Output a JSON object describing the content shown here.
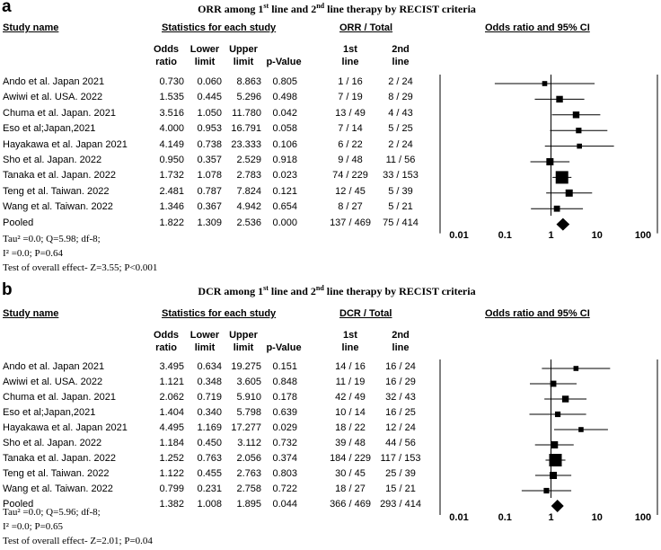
{
  "panels": [
    {
      "letter": "a",
      "title": "ORR among 1st line and 2nd line therapy by RECIST criteria",
      "title_parts": [
        "ORR among 1",
        "st",
        " line and 2",
        "nd",
        " line therapy by RECIST criteria"
      ],
      "headers": {
        "study": "Study name",
        "stats": "Statistics for each study",
        "counts": "ORR / Total",
        "plot": "Odds ratio and 95% CI"
      },
      "subheaders": {
        "odds": [
          "Odds",
          "ratio"
        ],
        "lower": [
          "Lower",
          "limit"
        ],
        "upper": [
          "Upper",
          "limit"
        ],
        "p": [
          "p-Value"
        ],
        "first": [
          "1st",
          "line"
        ],
        "second": [
          "2nd",
          "line"
        ]
      },
      "rows": [
        {
          "study": "Ando et al. Japan 2021",
          "or": "0.730",
          "lower": "0.060",
          "upper": "8.863",
          "p": "0.805",
          "first": "1 / 16",
          "second": "2 / 24"
        },
        {
          "study": "Awiwi et al. USA. 2022",
          "or": "1.535",
          "lower": "0.445",
          "upper": "5.296",
          "p": "0.498",
          "first": "7 / 19",
          "second": "8 / 29"
        },
        {
          "study": "Chuma et al. Japan. 2021",
          "or": "3.516",
          "lower": "1.050",
          "upper": "11.780",
          "p": "0.042",
          "first": "13 / 49",
          "second": "4 / 43"
        },
        {
          "study": "Eso et al;Japan,2021",
          "or": "4.000",
          "lower": "0.953",
          "upper": "16.791",
          "p": "0.058",
          "first": "7 / 14",
          "second": "5 / 25"
        },
        {
          "study": "Hayakawa et al. Japan 2021",
          "or": "4.149",
          "lower": "0.738",
          "upper": "23.333",
          "p": "0.106",
          "first": "6 / 22",
          "second": "2 / 24"
        },
        {
          "study": "Sho et al. Japan. 2022",
          "or": "0.950",
          "lower": "0.357",
          "upper": "2.529",
          "p": "0.918",
          "first": "9 / 48",
          "second": "11 / 56"
        },
        {
          "study": "Tanaka et al. Japan. 2022",
          "or": "1.732",
          "lower": "1.078",
          "upper": "2.783",
          "p": "0.023",
          "first": "74 / 229",
          "second": "33 / 153"
        },
        {
          "study": "Teng et al. Taiwan. 2022",
          "or": "2.481",
          "lower": "0.787",
          "upper": "7.824",
          "p": "0.121",
          "first": "12 / 45",
          "second": "5 / 39"
        },
        {
          "study": "Wang et al. Taiwan. 2022",
          "or": "1.346",
          "lower": "0.367",
          "upper": "4.942",
          "p": "0.654",
          "first": "8 / 27",
          "second": "5 / 21"
        },
        {
          "study": "Pooled",
          "or": "1.822",
          "lower": "1.309",
          "upper": "2.536",
          "p": "0.000",
          "first": "137 / 469",
          "second": "75 / 414"
        }
      ],
      "stats": [
        "Tau² =0.0; Q=5.98; df-8;",
        "I² =0.0; P=0.64",
        "Test of overall effect- Z=3.55; P<0.001"
      ]
    },
    {
      "letter": "b",
      "title": "DCR among 1st line and 2nd line therapy by RECIST criteria",
      "title_parts": [
        "DCR among 1",
        "st",
        " line and 2",
        "nd",
        " line therapy by RECIST criteria"
      ],
      "headers": {
        "study": "Study name",
        "stats": "Statistics for each study",
        "counts": "DCR / Total",
        "plot": "Odds ratio and 95% CI"
      },
      "subheaders": {
        "odds": [
          "Odds",
          "ratio"
        ],
        "lower": [
          "Lower",
          "limit"
        ],
        "upper": [
          "Upper",
          "limit"
        ],
        "p": [
          "p-Value"
        ],
        "first": [
          "1st",
          "line"
        ],
        "second": [
          "2nd",
          "line"
        ]
      },
      "rows": [
        {
          "study": "Ando et al. Japan 2021",
          "or": "3.495",
          "lower": "0.634",
          "upper": "19.275",
          "p": "0.151",
          "first": "14 / 16",
          "second": "16 / 24"
        },
        {
          "study": "Awiwi et al. USA. 2022",
          "or": "1.121",
          "lower": "0.348",
          "upper": "3.605",
          "p": "0.848",
          "first": "11 / 19",
          "second": "16 / 29"
        },
        {
          "study": "Chuma et al. Japan. 2021",
          "or": "2.062",
          "lower": "0.719",
          "upper": "5.910",
          "p": "0.178",
          "first": "42 / 49",
          "second": "32 / 43"
        },
        {
          "study": "Eso et al;Japan,2021",
          "or": "1.404",
          "lower": "0.340",
          "upper": "5.798",
          "p": "0.639",
          "first": "10 / 14",
          "second": "16 / 25"
        },
        {
          "study": "Hayakawa et al. Japan 2021",
          "or": "4.495",
          "lower": "1.169",
          "upper": "17.277",
          "p": "0.029",
          "first": "18 / 22",
          "second": "12 / 24"
        },
        {
          "study": "Sho et al. Japan. 2022",
          "or": "1.184",
          "lower": "0.450",
          "upper": "3.112",
          "p": "0.732",
          "first": "39 / 48",
          "second": "44 / 56"
        },
        {
          "study": "Tanaka et al. Japan. 2022",
          "or": "1.252",
          "lower": "0.763",
          "upper": "2.056",
          "p": "0.374",
          "first": "184 / 229",
          "second": "117 / 153"
        },
        {
          "study": "Teng et al. Taiwan. 2022",
          "or": "1.122",
          "lower": "0.455",
          "upper": "2.763",
          "p": "0.803",
          "first": "30 / 45",
          "second": "25 / 39"
        },
        {
          "study": "Wang et al. Taiwan. 2022",
          "or": "0.799",
          "lower": "0.231",
          "upper": "2.758",
          "p": "0.722",
          "first": "18 / 27",
          "second": "15 / 21"
        },
        {
          "study": "Pooled",
          "or": "1.382",
          "lower": "1.008",
          "upper": "1.895",
          "p": "0.044",
          "first": "366 / 469",
          "second": "293 / 414"
        }
      ],
      "stats": [
        "Tau² =0.0; Q=5.96; df-8;",
        "I² =0.0; P=0.65",
        "Test of overall effect- Z=2.01; P=0.04"
      ]
    }
  ],
  "chart_data": [
    {
      "type": "forest",
      "title": "ORR among 1st line and 2nd line therapy by RECIST criteria",
      "xlabel": "Odds ratio and 95% CI",
      "xscale": "log",
      "xlim": [
        0.01,
        100
      ],
      "ticks": [
        "0.01",
        "0.1",
        "1",
        "10",
        "100"
      ],
      "tick_values": [
        0.01,
        0.1,
        1,
        10,
        100
      ],
      "studies": [
        "Ando et al. Japan 2021",
        "Awiwi et al. USA. 2022",
        "Chuma et al. Japan. 2021",
        "Eso et al;Japan,2021",
        "Hayakawa et al. Japan 2021",
        "Sho et al. Japan. 2022",
        "Tanaka et al. Japan. 2022",
        "Teng et al. Taiwan. 2022",
        "Wang et al. Taiwan. 2022",
        "Pooled"
      ],
      "or": [
        0.73,
        1.535,
        3.516,
        4.0,
        4.149,
        0.95,
        1.732,
        2.481,
        1.346,
        1.822
      ],
      "lower": [
        0.06,
        0.445,
        1.05,
        0.953,
        0.738,
        0.357,
        1.078,
        0.787,
        0.367,
        1.309
      ],
      "upper": [
        8.863,
        5.296,
        11.78,
        16.791,
        23.333,
        2.529,
        2.783,
        7.824,
        4.942,
        2.536
      ],
      "weight": [
        0.3,
        0.45,
        0.45,
        0.35,
        0.3,
        0.5,
        1.0,
        0.5,
        0.4,
        1
      ]
    },
    {
      "type": "forest",
      "title": "DCR among 1st line and 2nd line therapy by RECIST criteria",
      "xlabel": "Odds ratio and 95% CI",
      "xscale": "log",
      "xlim": [
        0.01,
        100
      ],
      "ticks": [
        "0.01",
        "0.1",
        "1",
        "10",
        "100"
      ],
      "tick_values": [
        0.01,
        0.1,
        1,
        10,
        100
      ],
      "studies": [
        "Ando et al. Japan 2021",
        "Awiwi et al. USA. 2022",
        "Chuma et al. Japan. 2021",
        "Eso et al;Japan,2021",
        "Hayakawa et al. Japan 2021",
        "Sho et al. Japan. 2022",
        "Tanaka et al. Japan. 2022",
        "Teng et al. Taiwan. 2022",
        "Wang et al. Taiwan. 2022",
        "Pooled"
      ],
      "or": [
        3.495,
        1.121,
        2.062,
        1.404,
        4.495,
        1.184,
        1.252,
        1.122,
        0.799,
        1.382
      ],
      "lower": [
        0.634,
        0.348,
        0.719,
        0.34,
        1.169,
        0.45,
        0.763,
        0.455,
        0.231,
        1.008
      ],
      "upper": [
        19.275,
        3.605,
        5.91,
        5.798,
        17.277,
        3.112,
        2.056,
        2.763,
        2.758,
        1.895
      ],
      "weight": [
        0.3,
        0.4,
        0.45,
        0.35,
        0.3,
        0.5,
        1.0,
        0.5,
        0.35,
        1
      ]
    }
  ]
}
